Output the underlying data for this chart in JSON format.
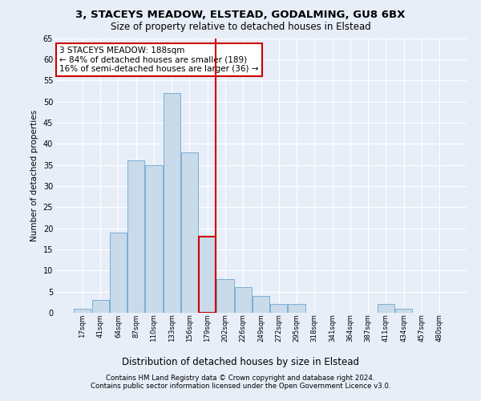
{
  "title1": "3, STACEYS MEADOW, ELSTEAD, GODALMING, GU8 6BX",
  "title2": "Size of property relative to detached houses in Elstead",
  "xlabel": "Distribution of detached houses by size in Elstead",
  "ylabel": "Number of detached properties",
  "footer1": "Contains HM Land Registry data © Crown copyright and database right 2024.",
  "footer2": "Contains public sector information licensed under the Open Government Licence v3.0.",
  "categories": [
    "17sqm",
    "41sqm",
    "64sqm",
    "87sqm",
    "110sqm",
    "133sqm",
    "156sqm",
    "179sqm",
    "202sqm",
    "226sqm",
    "249sqm",
    "272sqm",
    "295sqm",
    "318sqm",
    "341sqm",
    "364sqm",
    "387sqm",
    "411sqm",
    "434sqm",
    "457sqm",
    "480sqm"
  ],
  "values": [
    1,
    3,
    19,
    36,
    35,
    52,
    38,
    18,
    8,
    6,
    4,
    2,
    2,
    0,
    0,
    0,
    0,
    2,
    1,
    0,
    0
  ],
  "bar_color": "#c9daea",
  "bar_edge_color": "#7aafd4",
  "highlight_bar_index": 7,
  "highlight_bar_edge_color": "#cc0000",
  "vline_color": "#cc0000",
  "annotation_text": "3 STACEYS MEADOW: 188sqm\n← 84% of detached houses are smaller (189)\n16% of semi-detached houses are larger (36) →",
  "annotation_box_color": "#ffffff",
  "annotation_box_edge_color": "#cc0000",
  "ylim": [
    0,
    65
  ],
  "yticks": [
    0,
    5,
    10,
    15,
    20,
    25,
    30,
    35,
    40,
    45,
    50,
    55,
    60,
    65
  ],
  "bg_color": "#e8eef8",
  "plot_bg_color": "#e8eef8",
  "grid_color": "#ffffff"
}
